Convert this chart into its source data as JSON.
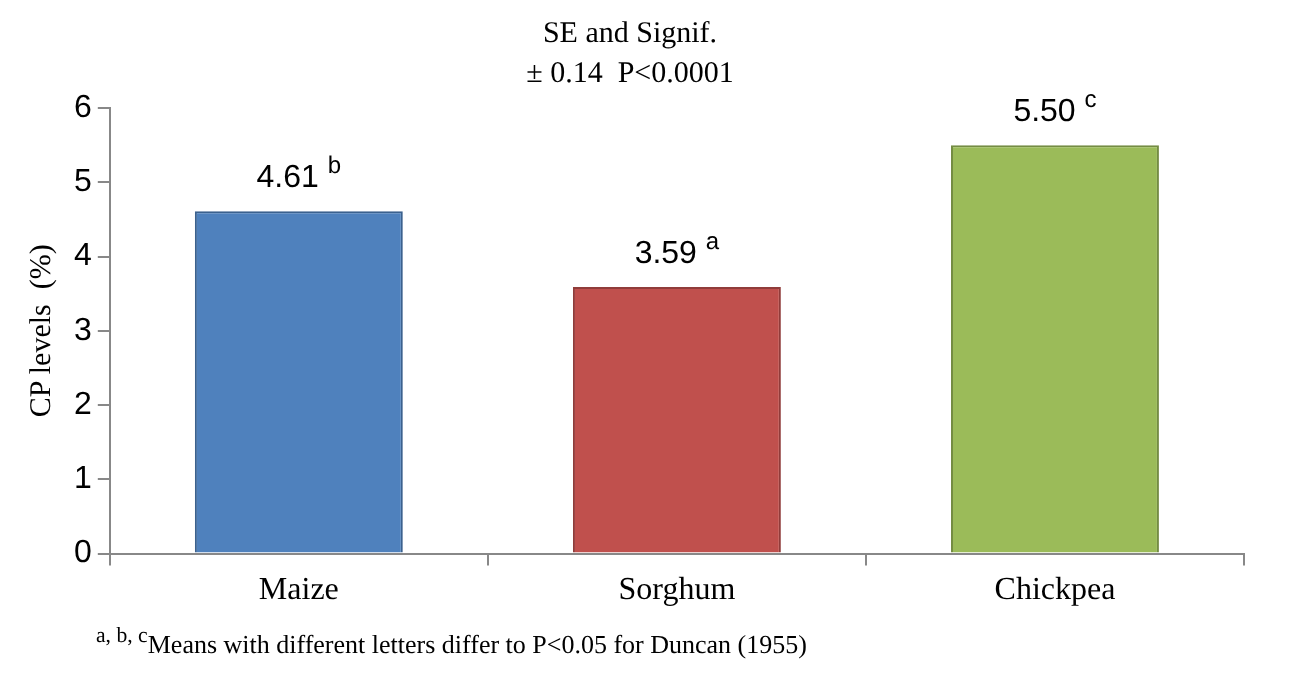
{
  "chart_data": {
    "type": "bar",
    "title": "SE and Signif.",
    "subtitle": "± 0.14  P<0.0001",
    "ylabel": "CP levels  (%)",
    "categories": [
      "Maize",
      "Sorghum",
      "Chickpea"
    ],
    "values": [
      4.61,
      3.59,
      5.5
    ],
    "colors": [
      "#4f81bd",
      "#c0504d",
      "#9bbb59"
    ],
    "value_labels": [
      "4.61 $^{b}$",
      "3.59 $^{a}$",
      "5.50 $^{c}$"
    ],
    "ylim": [
      0,
      6
    ],
    "yticks": [
      0,
      1,
      2,
      3,
      4,
      5,
      6
    ],
    "grid": false,
    "legend": false,
    "annotations": [
      "$^{a, b, c}$Means with  different letters differ to P<0.05 for Duncan (1955)"
    ]
  }
}
